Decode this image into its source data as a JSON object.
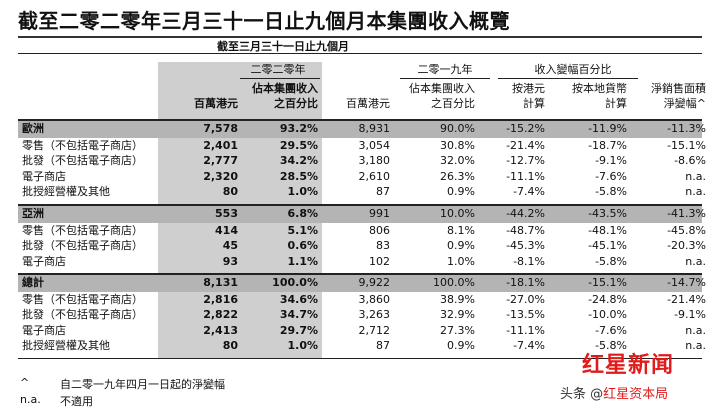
{
  "title": "截至二零二零年三月三十一日止九個月本集團收入概覽",
  "period_header": "截至三月三十一日止九個月",
  "year_2020": "二零二零年",
  "year_2019": "二零一九年",
  "change_header": "收入變幅百分比",
  "columns": {
    "hkd_2020": "百萬港元",
    "share_2020": [
      "佔本集團收入",
      "之百分比"
    ],
    "hkd_2019": "百萬港元",
    "share_2019": [
      "佔本集團收入",
      "之百分比"
    ],
    "chg_hkd": [
      "按港元",
      "計算"
    ],
    "chg_local": [
      "按本地貨幣",
      "計算"
    ],
    "chg_sales": [
      "淨銷售面積",
      "淨變幅^"
    ]
  },
  "sections": [
    {
      "rows": [
        {
          "label": "歐洲",
          "hkd_2020": "7,578",
          "share_2020": "93.2%",
          "hkd_2019": "8,931",
          "share_2019": "90.0%",
          "chg_hkd": "-15.2%",
          "chg_local": "-11.9%",
          "chg_sales": "-11.3%",
          "total": true
        },
        {
          "label": "零售（不包括電子商店）",
          "hkd_2020": "2,401",
          "share_2020": "29.5%",
          "hkd_2019": "3,054",
          "share_2019": "30.8%",
          "chg_hkd": "-21.4%",
          "chg_local": "-18.7%",
          "chg_sales": "-15.1%"
        },
        {
          "label": "批發（不包括電子商店）",
          "hkd_2020": "2,777",
          "share_2020": "34.2%",
          "hkd_2019": "3,180",
          "share_2019": "32.0%",
          "chg_hkd": "-12.7%",
          "chg_local": "-9.1%",
          "chg_sales": "-8.6%"
        },
        {
          "label": "電子商店",
          "hkd_2020": "2,320",
          "share_2020": "28.5%",
          "hkd_2019": "2,610",
          "share_2019": "26.3%",
          "chg_hkd": "-11.1%",
          "chg_local": "-7.6%",
          "chg_sales": "n.a."
        },
        {
          "label": "批授經營權及其他",
          "hkd_2020": "80",
          "share_2020": "1.0%",
          "hkd_2019": "87",
          "share_2019": "0.9%",
          "chg_hkd": "-7.4%",
          "chg_local": "-5.8%",
          "chg_sales": "n.a."
        }
      ]
    },
    {
      "rows": [
        {
          "label": "亞洲",
          "hkd_2020": "553",
          "share_2020": "6.8%",
          "hkd_2019": "991",
          "share_2019": "10.0%",
          "chg_hkd": "-44.2%",
          "chg_local": "-43.5%",
          "chg_sales": "-41.3%",
          "total": true
        },
        {
          "label": "零售（不包括電子商店）",
          "hkd_2020": "414",
          "share_2020": "5.1%",
          "hkd_2019": "806",
          "share_2019": "8.1%",
          "chg_hkd": "-48.7%",
          "chg_local": "-48.1%",
          "chg_sales": "-45.8%"
        },
        {
          "label": "批發（不包括電子商店）",
          "hkd_2020": "45",
          "share_2020": "0.6%",
          "hkd_2019": "83",
          "share_2019": "0.9%",
          "chg_hkd": "-45.3%",
          "chg_local": "-45.1%",
          "chg_sales": "-20.3%"
        },
        {
          "label": "電子商店",
          "hkd_2020": "93",
          "share_2020": "1.1%",
          "hkd_2019": "102",
          "share_2019": "1.0%",
          "chg_hkd": "-8.1%",
          "chg_local": "-5.8%",
          "chg_sales": "n.a."
        }
      ]
    },
    {
      "rows": [
        {
          "label": "總計",
          "hkd_2020": "8,131",
          "share_2020": "100.0%",
          "hkd_2019": "9,922",
          "share_2019": "100.0%",
          "chg_hkd": "-18.1%",
          "chg_local": "-15.1%",
          "chg_sales": "-14.7%",
          "total": true
        },
        {
          "label": "零售（不包括電子商店）",
          "hkd_2020": "2,816",
          "share_2020": "34.6%",
          "hkd_2019": "3,860",
          "share_2019": "38.9%",
          "chg_hkd": "-27.0%",
          "chg_local": "-24.8%",
          "chg_sales": "-21.4%"
        },
        {
          "label": "批發（不包括電子商店）",
          "hkd_2020": "2,822",
          "share_2020": "34.7%",
          "hkd_2019": "3,263",
          "share_2019": "32.9%",
          "chg_hkd": "-13.5%",
          "chg_local": "-10.0%",
          "chg_sales": "-9.1%"
        },
        {
          "label": "電子商店",
          "hkd_2020": "2,413",
          "share_2020": "29.7%",
          "hkd_2019": "2,712",
          "share_2019": "27.3%",
          "chg_hkd": "-11.1%",
          "chg_local": "-7.6%",
          "chg_sales": "n.a."
        },
        {
          "label": "批授經營權及其他",
          "hkd_2020": "80",
          "share_2020": "1.0%",
          "hkd_2019": "87",
          "share_2019": "0.9%",
          "chg_hkd": "-7.4%",
          "chg_local": "-5.8%",
          "chg_sales": "n.a."
        }
      ]
    }
  ],
  "footnotes": [
    {
      "mark": "^",
      "text": "自二零一九年四月一日起的淨變幅"
    },
    {
      "mark": "n.a.",
      "text": "不適用"
    }
  ],
  "watermark": {
    "logo": "红星新闻",
    "source_prefix": "头条 @",
    "source_name": "红星资本局"
  }
}
